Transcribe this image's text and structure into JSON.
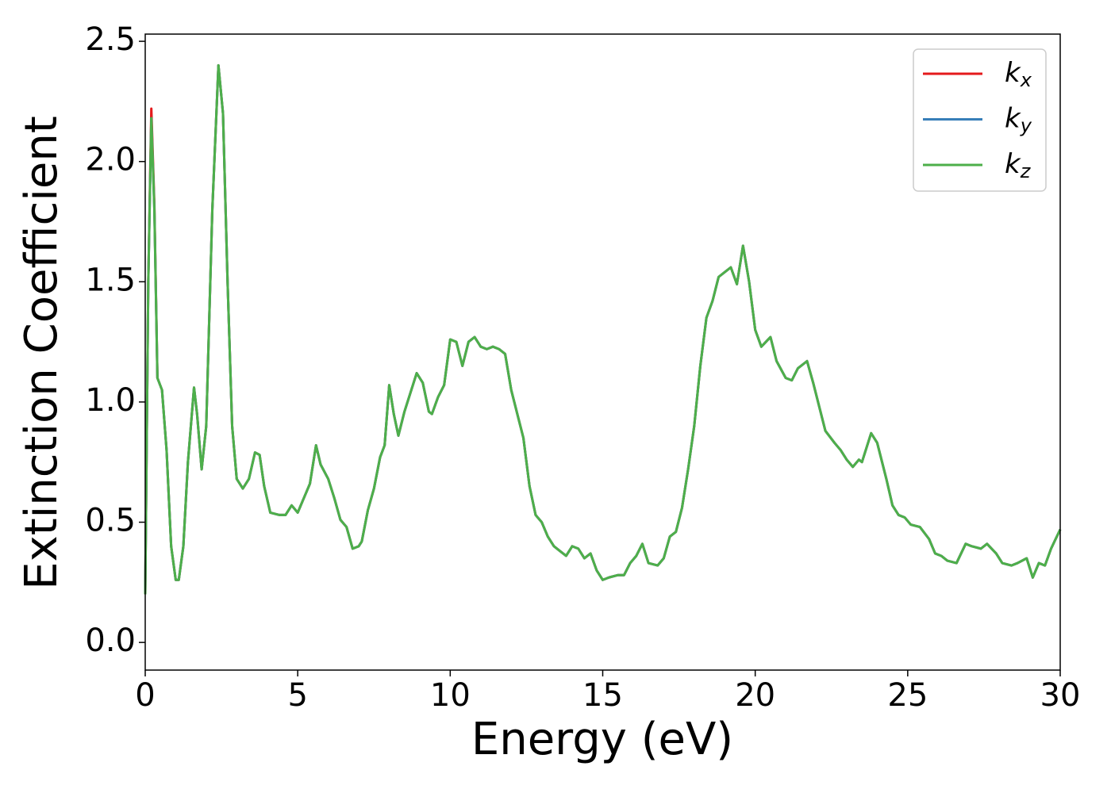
{
  "chart_data": {
    "type": "line",
    "xlabel": "Energy (eV)",
    "ylabel": "Extinction Coefficient",
    "xlim": [
      0,
      30
    ],
    "ylim": [
      -0.115,
      2.53
    ],
    "xticks": [
      0,
      5,
      10,
      15,
      20,
      25,
      30
    ],
    "yticks": [
      {
        "value": 0,
        "label": "0.0"
      },
      0.5,
      {
        "value": 1,
        "label": "1.0"
      },
      1.5,
      {
        "value": 2,
        "label": "2.0"
      },
      2.5
    ],
    "legend": "upper right",
    "grid": false,
    "x": [
      0,
      0.1,
      0.2,
      0.3,
      0.4,
      0.55,
      0.7,
      0.85,
      1.0,
      1.1,
      1.25,
      1.4,
      1.6,
      1.7,
      1.85,
      2.0,
      2.2,
      2.4,
      2.55,
      2.7,
      2.85,
      3.0,
      3.2,
      3.4,
      3.6,
      3.75,
      3.9,
      4.1,
      4.4,
      4.6,
      4.8,
      5.0,
      5.2,
      5.4,
      5.6,
      5.75,
      6.0,
      6.2,
      6.4,
      6.6,
      6.8,
      7.0,
      7.1,
      7.3,
      7.5,
      7.7,
      7.85,
      8.0,
      8.15,
      8.3,
      8.5,
      8.7,
      8.9,
      9.1,
      9.3,
      9.4,
      9.6,
      9.8,
      10.0,
      10.2,
      10.4,
      10.6,
      10.8,
      11.0,
      11.2,
      11.4,
      11.6,
      11.8,
      12.0,
      12.2,
      12.4,
      12.6,
      12.8,
      13.0,
      13.2,
      13.4,
      13.6,
      13.8,
      14.0,
      14.2,
      14.4,
      14.6,
      14.8,
      15.0,
      15.2,
      15.5,
      15.7,
      15.9,
      16.1,
      16.3,
      16.5,
      16.8,
      17.0,
      17.2,
      17.4,
      17.6,
      17.8,
      18.0,
      18.2,
      18.4,
      18.6,
      18.8,
      19.0,
      19.2,
      19.4,
      19.6,
      19.8,
      20.0,
      20.2,
      20.5,
      20.7,
      21.0,
      21.2,
      21.4,
      21.7,
      21.9,
      22.1,
      22.3,
      22.6,
      22.8,
      23.0,
      23.2,
      23.4,
      23.5,
      23.8,
      24.0,
      24.3,
      24.5,
      24.7,
      24.9,
      25.1,
      25.4,
      25.7,
      25.9,
      26.1,
      26.3,
      26.6,
      26.9,
      27.1,
      27.4,
      27.6,
      27.9,
      28.1,
      28.4,
      28.6,
      28.9,
      29.1,
      29.3,
      29.5,
      29.7,
      30.0
    ],
    "series": [
      {
        "name": "kx",
        "color": "#e41a1c",
        "values": [
          0.2,
          1.5,
          2.22,
          1.82,
          1.1,
          1.05,
          0.8,
          0.4,
          0.26,
          0.26,
          0.4,
          0.75,
          1.06,
          0.95,
          0.72,
          0.9,
          1.8,
          2.4,
          2.2,
          1.5,
          0.9,
          0.68,
          0.64,
          0.68,
          0.79,
          0.78,
          0.65,
          0.54,
          0.53,
          0.53,
          0.57,
          0.54,
          0.6,
          0.66,
          0.82,
          0.74,
          0.68,
          0.6,
          0.51,
          0.48,
          0.39,
          0.4,
          0.42,
          0.55,
          0.64,
          0.77,
          0.82,
          1.07,
          0.95,
          0.86,
          0.96,
          1.04,
          1.12,
          1.08,
          0.96,
          0.95,
          1.02,
          1.07,
          1.26,
          1.25,
          1.15,
          1.25,
          1.27,
          1.23,
          1.22,
          1.23,
          1.22,
          1.2,
          1.05,
          0.95,
          0.85,
          0.65,
          0.53,
          0.5,
          0.44,
          0.4,
          0.38,
          0.36,
          0.4,
          0.39,
          0.35,
          0.37,
          0.3,
          0.26,
          0.27,
          0.28,
          0.28,
          0.33,
          0.36,
          0.41,
          0.33,
          0.32,
          0.35,
          0.44,
          0.46,
          0.56,
          0.72,
          0.9,
          1.15,
          1.35,
          1.42,
          1.52,
          1.54,
          1.56,
          1.49,
          1.65,
          1.5,
          1.3,
          1.23,
          1.27,
          1.17,
          1.1,
          1.09,
          1.14,
          1.17,
          1.08,
          0.98,
          0.88,
          0.83,
          0.8,
          0.76,
          0.73,
          0.76,
          0.75,
          0.87,
          0.83,
          0.68,
          0.57,
          0.53,
          0.52,
          0.49,
          0.48,
          0.43,
          0.37,
          0.36,
          0.34,
          0.33,
          0.41,
          0.4,
          0.39,
          0.41,
          0.37,
          0.33,
          0.32,
          0.33,
          0.35,
          0.27,
          0.33,
          0.32,
          0.39,
          0.47
        ]
      },
      {
        "name": "ky",
        "color": "#377eb8",
        "values": [
          0.2,
          1.5,
          2.18,
          1.8,
          1.1,
          1.05,
          0.8,
          0.4,
          0.26,
          0.26,
          0.4,
          0.75,
          1.06,
          0.95,
          0.72,
          0.9,
          1.8,
          2.4,
          2.2,
          1.5,
          0.9,
          0.68,
          0.64,
          0.68,
          0.79,
          0.78,
          0.65,
          0.54,
          0.53,
          0.53,
          0.57,
          0.54,
          0.6,
          0.66,
          0.82,
          0.74,
          0.68,
          0.6,
          0.51,
          0.48,
          0.39,
          0.4,
          0.42,
          0.55,
          0.64,
          0.77,
          0.82,
          1.07,
          0.95,
          0.86,
          0.96,
          1.04,
          1.12,
          1.08,
          0.96,
          0.95,
          1.02,
          1.07,
          1.26,
          1.25,
          1.15,
          1.25,
          1.27,
          1.23,
          1.22,
          1.23,
          1.22,
          1.2,
          1.05,
          0.95,
          0.85,
          0.65,
          0.53,
          0.5,
          0.44,
          0.4,
          0.38,
          0.36,
          0.4,
          0.39,
          0.35,
          0.37,
          0.3,
          0.26,
          0.27,
          0.28,
          0.28,
          0.33,
          0.36,
          0.41,
          0.33,
          0.32,
          0.35,
          0.44,
          0.46,
          0.56,
          0.72,
          0.9,
          1.15,
          1.35,
          1.42,
          1.52,
          1.54,
          1.56,
          1.49,
          1.65,
          1.5,
          1.3,
          1.23,
          1.27,
          1.17,
          1.1,
          1.09,
          1.14,
          1.17,
          1.08,
          0.98,
          0.88,
          0.83,
          0.8,
          0.76,
          0.73,
          0.76,
          0.75,
          0.87,
          0.83,
          0.68,
          0.57,
          0.53,
          0.52,
          0.49,
          0.48,
          0.43,
          0.37,
          0.36,
          0.34,
          0.33,
          0.41,
          0.4,
          0.39,
          0.41,
          0.37,
          0.33,
          0.32,
          0.33,
          0.35,
          0.27,
          0.33,
          0.32,
          0.39,
          0.47
        ]
      },
      {
        "name": "kz",
        "color": "#4daf4a",
        "values": [
          0.2,
          1.5,
          2.18,
          1.8,
          1.1,
          1.05,
          0.8,
          0.4,
          0.26,
          0.26,
          0.4,
          0.75,
          1.06,
          0.95,
          0.72,
          0.9,
          1.8,
          2.4,
          2.2,
          1.5,
          0.9,
          0.68,
          0.64,
          0.68,
          0.79,
          0.78,
          0.65,
          0.54,
          0.53,
          0.53,
          0.57,
          0.54,
          0.6,
          0.66,
          0.82,
          0.74,
          0.68,
          0.6,
          0.51,
          0.48,
          0.39,
          0.4,
          0.42,
          0.55,
          0.64,
          0.77,
          0.82,
          1.07,
          0.95,
          0.86,
          0.96,
          1.04,
          1.12,
          1.08,
          0.96,
          0.95,
          1.02,
          1.07,
          1.26,
          1.25,
          1.15,
          1.25,
          1.27,
          1.23,
          1.22,
          1.23,
          1.22,
          1.2,
          1.05,
          0.95,
          0.85,
          0.65,
          0.53,
          0.5,
          0.44,
          0.4,
          0.38,
          0.36,
          0.4,
          0.39,
          0.35,
          0.37,
          0.3,
          0.26,
          0.27,
          0.28,
          0.28,
          0.33,
          0.36,
          0.41,
          0.33,
          0.32,
          0.35,
          0.44,
          0.46,
          0.56,
          0.72,
          0.9,
          1.15,
          1.35,
          1.42,
          1.52,
          1.54,
          1.56,
          1.49,
          1.65,
          1.5,
          1.3,
          1.23,
          1.27,
          1.17,
          1.1,
          1.09,
          1.14,
          1.17,
          1.08,
          0.98,
          0.88,
          0.83,
          0.8,
          0.76,
          0.73,
          0.76,
          0.75,
          0.87,
          0.83,
          0.68,
          0.57,
          0.53,
          0.52,
          0.49,
          0.48,
          0.43,
          0.37,
          0.36,
          0.34,
          0.33,
          0.41,
          0.4,
          0.39,
          0.41,
          0.37,
          0.33,
          0.32,
          0.33,
          0.35,
          0.27,
          0.33,
          0.32,
          0.39,
          0.47
        ]
      }
    ]
  }
}
